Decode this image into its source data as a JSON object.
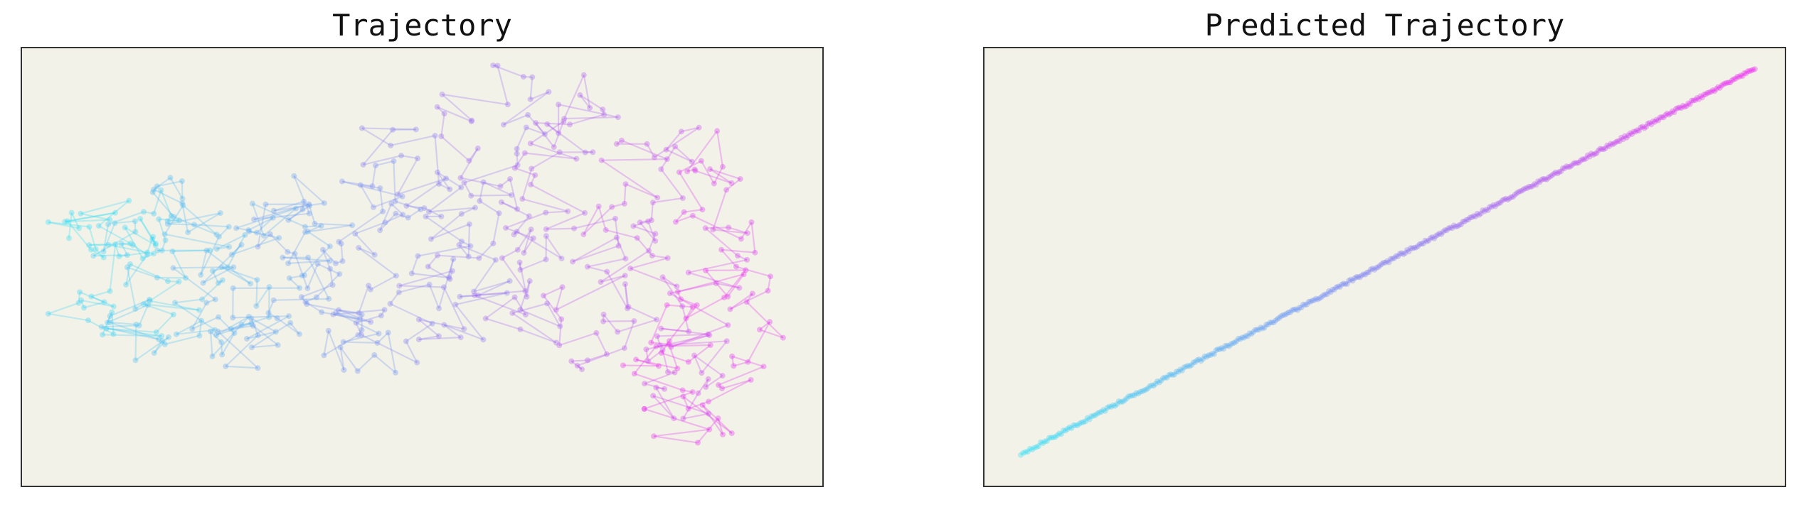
{
  "chart_data": [
    {
      "type": "line",
      "title": "Trajectory",
      "xlabel": "",
      "ylabel": "",
      "grid": false,
      "ticks_shown": false,
      "color_gradient": [
        "#33e0f5",
        "#8a7cf2",
        "#f02cf0"
      ],
      "marker": "circle",
      "n_points": 600,
      "point_alpha": 0.35,
      "xlim": [
        -3.2,
        3.2
      ],
      "ylim": [
        -3.0,
        3.0
      ],
      "trajectory_points_note_free": true,
      "x": [
        -2.9,
        -2.7,
        -2.6,
        -2.4,
        -2.2,
        -2.5,
        -2.8,
        -2.3,
        -2.0,
        -2.2,
        -2.5,
        -2.1,
        -1.9,
        -2.2,
        -2.4,
        -2.0,
        -1.8,
        -1.6,
        -1.9,
        -2.1,
        -1.7,
        -1.5,
        -1.3,
        -1.6,
        -1.8,
        -1.4,
        -1.2,
        -1.0,
        -1.3,
        -1.5,
        -1.1,
        -0.9,
        -0.7,
        -1.0,
        -1.2,
        -0.8,
        -0.6,
        -0.4,
        -0.7,
        -0.9,
        -0.5,
        -0.3,
        -0.1,
        -0.4,
        -0.6,
        -0.2,
        0.0,
        0.2,
        -0.1,
        -0.3,
        0.1,
        0.3,
        0.5,
        0.2,
        0.0,
        0.4,
        0.6,
        0.8,
        0.5,
        0.3,
        0.7,
        0.9,
        1.1,
        0.8,
        0.6,
        1.0,
        1.2,
        1.4,
        1.1,
        0.9,
        1.3,
        1.5,
        1.7,
        1.4,
        1.2,
        1.6,
        1.8,
        2.0,
        1.7,
        1.5,
        1.9,
        2.1,
        2.3,
        2.0,
        1.8,
        2.2,
        2.4,
        2.6,
        2.3,
        2.1,
        2.5,
        2.7,
        2.5,
        2.3,
        2.1,
        1.9,
        2.2,
        2.4,
        2.0,
        1.8
      ],
      "y": [
        0.5,
        0.3,
        0.8,
        0.2,
        0.6,
        -0.2,
        -0.6,
        -1.0,
        -0.5,
        0.1,
        0.4,
        0.9,
        0.2,
        -0.3,
        -0.8,
        -1.3,
        -0.6,
        0.1,
        0.7,
        1.0,
        0.4,
        -0.2,
        -0.7,
        -1.1,
        -0.4,
        0.3,
        0.8,
        0.2,
        -0.5,
        -1.2,
        -0.8,
        -0.1,
        0.6,
        1.1,
        0.5,
        -0.3,
        -0.9,
        -1.4,
        -0.7,
        0.0,
        0.9,
        1.4,
        0.7,
        0.1,
        -0.6,
        -1.1,
        -0.3,
        0.5,
        1.2,
        1.8,
        1.0,
        0.2,
        -0.5,
        -1.0,
        -0.2,
        0.6,
        1.5,
        2.2,
        2.6,
        1.9,
        1.1,
        0.3,
        -0.4,
        -0.9,
        0.0,
        0.9,
        1.7,
        2.4,
        2.0,
        1.3,
        0.5,
        -0.2,
        -0.8,
        -1.3,
        -0.6,
        0.2,
        1.0,
        1.8,
        1.4,
        0.7,
        -0.1,
        -0.9,
        -1.5,
        -2.0,
        -1.4,
        -0.7,
        0.2,
        1.0,
        1.6,
        0.9,
        0.1,
        -0.6,
        -1.3,
        -1.9,
        -2.3,
        -1.6,
        -0.8,
        0.0,
        -0.9,
        -1.7
      ]
    },
    {
      "type": "line",
      "title": "Predicted Trajectory",
      "xlabel": "",
      "ylabel": "",
      "grid": false,
      "ticks_shown": false,
      "color_gradient": [
        "#33e0f5",
        "#8a7cf2",
        "#f02cf0"
      ],
      "marker": "circle",
      "point_alpha": 0.35,
      "xlim": [
        -3.2,
        3.2
      ],
      "ylim": [
        -3.0,
        3.0
      ],
      "x_start": -2.9,
      "y_start": -2.55,
      "x_end": 2.95,
      "y_end": 2.7,
      "n_points": 400
    }
  ]
}
